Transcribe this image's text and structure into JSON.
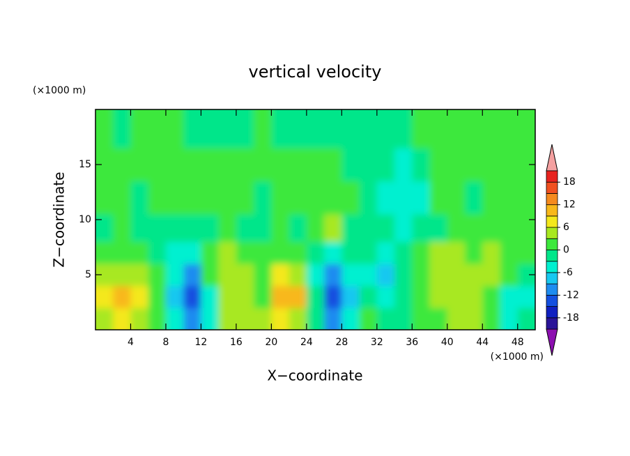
{
  "chart_data": {
    "type": "contour",
    "title": "vertical velocity",
    "x_label": "X−coordinate",
    "y_label": "Z−coordinate",
    "x_unit": "(×1000 m)",
    "y_unit": "(×1000 m)",
    "xlim": [
      0,
      50
    ],
    "ylim": [
      0,
      20
    ],
    "xticks": [
      4,
      8,
      12,
      16,
      20,
      24,
      28,
      32,
      36,
      40,
      44,
      48
    ],
    "yticks": [
      5,
      10,
      15
    ],
    "field": {
      "x": [
        1,
        3,
        5,
        7,
        9,
        11,
        13,
        15,
        17,
        19,
        21,
        23,
        25,
        27,
        29,
        31,
        33,
        35,
        37,
        39,
        41,
        43,
        45,
        47,
        49
      ],
      "z": [
        1,
        3,
        5,
        7,
        9,
        12,
        15,
        18
      ],
      "values": [
        [
          5,
          7,
          5,
          1,
          -4,
          -10,
          -4,
          4,
          5,
          4,
          7,
          4,
          -2,
          -10,
          -4,
          1,
          -1,
          -1,
          2,
          1,
          4,
          5,
          2,
          -4,
          -1
        ],
        [
          7,
          10,
          7,
          1,
          -7,
          -13,
          -4,
          4,
          5,
          2,
          10,
          10,
          -2,
          -13,
          -7,
          -1,
          -4,
          -1,
          2,
          4,
          5,
          4,
          2,
          -4,
          -4
        ],
        [
          4,
          5,
          4,
          1,
          -4,
          -10,
          1,
          5,
          4,
          1,
          7,
          5,
          -4,
          -10,
          -4,
          -4,
          -7,
          -1,
          1,
          4,
          5,
          4,
          4,
          1,
          -1
        ],
        [
          1,
          1,
          1,
          -1,
          -4,
          -4,
          1,
          4,
          1,
          1,
          1,
          1,
          -1,
          -4,
          -1,
          -1,
          -4,
          -1,
          1,
          4,
          5,
          1,
          5,
          1,
          1
        ],
        [
          -1,
          1,
          -1,
          -1,
          -1,
          -1,
          -1,
          1,
          -1,
          -1,
          1,
          -1,
          1,
          5,
          -1,
          -1,
          -1,
          -4,
          -1,
          -1,
          1,
          1,
          1,
          1,
          1
        ],
        [
          1,
          1,
          -1,
          1,
          1,
          1,
          1,
          1,
          1,
          -1,
          1,
          1,
          1,
          1,
          1,
          -1,
          -4,
          -4,
          -4,
          1,
          1,
          -1,
          1,
          1,
          1
        ],
        [
          1,
          1,
          1,
          1,
          1,
          1,
          1,
          1,
          1,
          1,
          1,
          1,
          1,
          1,
          -1,
          -1,
          -1,
          -4,
          -1,
          1,
          1,
          1,
          1,
          1,
          1
        ],
        [
          1,
          -1,
          1,
          1,
          1,
          -1,
          -1,
          -1,
          -1,
          1,
          -1,
          -1,
          -1,
          -1,
          -1,
          -1,
          -1,
          -1,
          1,
          1,
          1,
          1,
          1,
          1,
          1
        ]
      ]
    },
    "colorbar": {
      "levels": [
        -21,
        -18,
        -15,
        -12,
        -9,
        -6,
        -3,
        0,
        3,
        6,
        9,
        12,
        15,
        18,
        21
      ],
      "colors": [
        "#8c10b0",
        "#2a1498",
        "#1020c0",
        "#1450e0",
        "#1e8cf0",
        "#18c8f0",
        "#00f0d0",
        "#00e68a",
        "#3ce83c",
        "#a8e820",
        "#f4e81c",
        "#f8b81a",
        "#f58a1e",
        "#f05020",
        "#e8231f",
        "#f4a0a0"
      ],
      "ticks": [
        -18,
        -12,
        -6,
        0,
        6,
        12,
        18
      ]
    }
  }
}
